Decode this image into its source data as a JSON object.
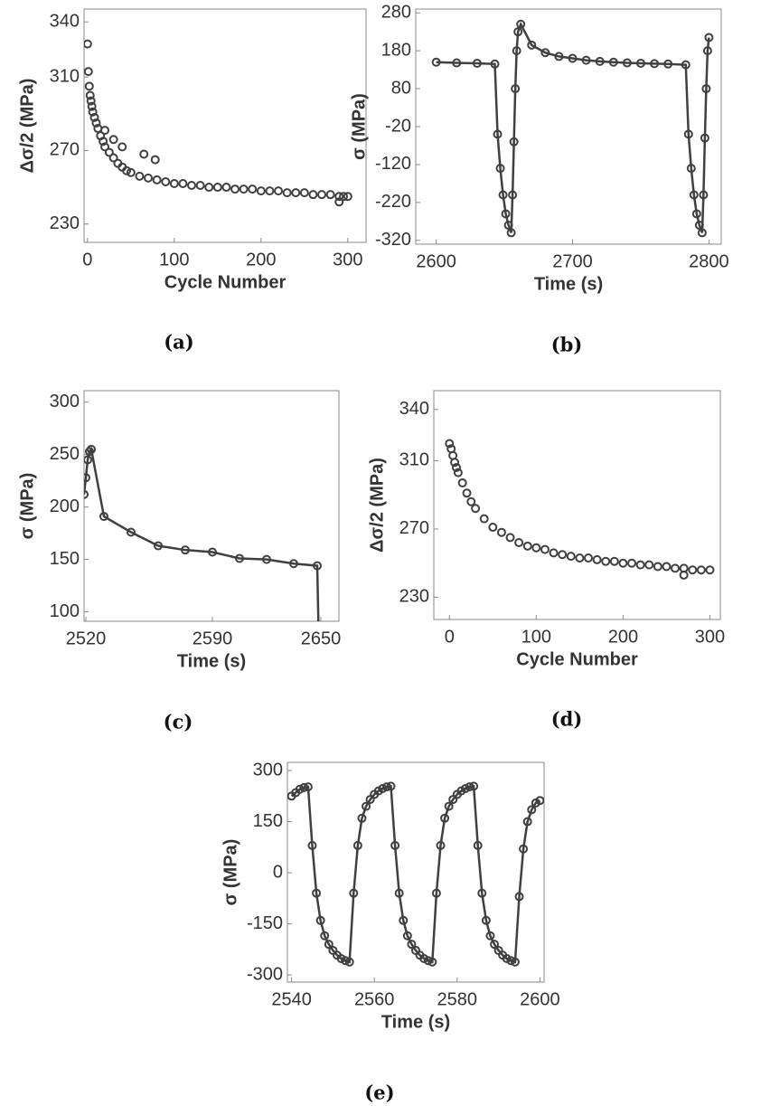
{
  "chart_data": [
    {
      "type": "scatter",
      "label": "(a)",
      "xlabel": "Cycle Number",
      "ylabel": "Δσ/2 (MPa)",
      "color": "#404040",
      "x": [
        0,
        1,
        2,
        3,
        4,
        5,
        6,
        8,
        10,
        12,
        15,
        18,
        20,
        25,
        30,
        35,
        40,
        45,
        50,
        60,
        70,
        80,
        90,
        100,
        110,
        120,
        130,
        140,
        150,
        160,
        170,
        180,
        190,
        200,
        210,
        220,
        230,
        240,
        250,
        260,
        270,
        280,
        290,
        295,
        300,
        20,
        30,
        40,
        65,
        78,
        290
      ],
      "values": [
        328,
        313,
        305,
        300,
        297,
        294,
        291,
        288,
        285,
        282,
        278,
        275,
        272,
        269,
        266,
        263,
        261,
        259,
        258,
        256,
        255,
        254,
        253,
        252,
        252,
        251,
        251,
        250,
        250,
        250,
        249,
        249,
        249,
        248,
        248,
        248,
        247,
        247,
        247,
        246,
        246,
        246,
        245,
        245,
        245,
        281,
        276,
        272,
        268,
        265,
        242
      ],
      "xlim": [
        -4,
        321
      ],
      "ylim": [
        220,
        347
      ],
      "xticks": [
        0,
        100,
        200,
        300
      ],
      "yticks": [
        230,
        270,
        310,
        340
      ]
    },
    {
      "type": "line",
      "label": "(b)",
      "xlabel": "Time (s)",
      "ylabel": "σ (MPa)",
      "color": "#404040",
      "x": [
        2600,
        2615,
        2630,
        2643,
        2645,
        2647,
        2649,
        2651,
        2653,
        2655,
        2656,
        2657,
        2658,
        2659,
        2660,
        2662,
        2670,
        2680,
        2690,
        2700,
        2710,
        2720,
        2730,
        2740,
        2750,
        2760,
        2770,
        2783,
        2785,
        2787,
        2789,
        2791,
        2793,
        2795,
        2796,
        2797,
        2798,
        2799,
        2800
      ],
      "values": [
        150,
        148,
        147,
        145,
        -40,
        -130,
        -200,
        -250,
        -280,
        -300,
        -200,
        -60,
        80,
        180,
        230,
        250,
        195,
        175,
        165,
        160,
        155,
        152,
        150,
        148,
        147,
        146,
        145,
        143,
        -40,
        -130,
        -200,
        -250,
        -280,
        -300,
        -200,
        -50,
        80,
        180,
        215
      ],
      "xlim": [
        2585,
        2809
      ],
      "ylim": [
        -330,
        290
      ],
      "xticks": [
        2600,
        2700,
        2800
      ],
      "yticks": [
        280,
        180,
        80,
        -20,
        -120,
        -220,
        -320
      ]
    },
    {
      "type": "line",
      "label": "(c)",
      "xlabel": "Time (s)",
      "ylabel": "σ (MPa)",
      "color": "#404040",
      "x": [
        2519,
        2520,
        2521,
        2522,
        2523,
        2530,
        2545,
        2560,
        2575,
        2590,
        2605,
        2620,
        2635,
        2648,
        2649
      ],
      "values": [
        212,
        228,
        245,
        253,
        255,
        191,
        176,
        163,
        159,
        157,
        151,
        150,
        146,
        144,
        60
      ],
      "xlim": [
        2519,
        2660
      ],
      "ylim": [
        91,
        311
      ],
      "xticks": [
        2520,
        2590,
        2650
      ],
      "yticks": [
        100,
        150,
        200,
        250,
        300
      ]
    },
    {
      "type": "scatter",
      "label": "(d)",
      "xlabel": "Cycle Number",
      "ylabel": "Δσ/2 (MPa)",
      "color": "#404040",
      "x": [
        0,
        2,
        4,
        6,
        8,
        10,
        15,
        20,
        25,
        30,
        40,
        50,
        60,
        70,
        80,
        90,
        100,
        110,
        120,
        130,
        140,
        150,
        160,
        170,
        180,
        190,
        200,
        210,
        220,
        230,
        240,
        250,
        260,
        270,
        280,
        290,
        300,
        270
      ],
      "values": [
        320,
        317,
        313,
        309,
        306,
        303,
        297,
        291,
        286,
        282,
        276,
        271,
        268,
        265,
        262,
        260,
        259,
        258,
        256,
        255,
        254,
        253,
        253,
        252,
        251,
        251,
        250,
        250,
        249,
        249,
        248,
        248,
        247,
        247,
        246,
        246,
        246,
        243
      ],
      "xlim": [
        -18,
        312
      ],
      "ylim": [
        217,
        351
      ],
      "xticks": [
        0,
        100,
        200,
        300
      ],
      "yticks": [
        230,
        270,
        310,
        340
      ]
    },
    {
      "type": "line",
      "label": "(e)",
      "xlabel": "Time (s)",
      "ylabel": "σ (MPa)",
      "color": "#404040",
      "x": [
        2540,
        2541,
        2542,
        2543,
        2544,
        2545,
        2546,
        2547,
        2548,
        2549,
        2550,
        2551,
        2552,
        2553,
        2554,
        2555,
        2556,
        2557,
        2558,
        2559,
        2560,
        2561,
        2562,
        2563,
        2564,
        2565,
        2566,
        2567,
        2568,
        2569,
        2570,
        2571,
        2572,
        2573,
        2574,
        2575,
        2576,
        2577,
        2578,
        2579,
        2580,
        2581,
        2582,
        2583,
        2584,
        2585,
        2586,
        2587,
        2588,
        2589,
        2590,
        2591,
        2592,
        2593,
        2594,
        2595,
        2596,
        2597,
        2598,
        2599,
        2600
      ],
      "values": [
        225,
        235,
        245,
        250,
        252,
        80,
        -60,
        -140,
        -185,
        -210,
        -228,
        -242,
        -252,
        -258,
        -262,
        -60,
        80,
        160,
        195,
        215,
        230,
        240,
        247,
        252,
        254,
        80,
        -60,
        -140,
        -185,
        -210,
        -228,
        -242,
        -252,
        -258,
        -262,
        -60,
        80,
        160,
        195,
        215,
        230,
        240,
        247,
        252,
        254,
        80,
        -60,
        -140,
        -185,
        -210,
        -228,
        -242,
        -252,
        -258,
        -262,
        -70,
        70,
        150,
        185,
        205,
        212
      ],
      "xlim": [
        2539,
        2601
      ],
      "ylim": [
        -321,
        324
      ],
      "xticks": [
        2540,
        2560,
        2580,
        2600
      ],
      "yticks": [
        300,
        150,
        0,
        -150,
        -300
      ]
    }
  ]
}
